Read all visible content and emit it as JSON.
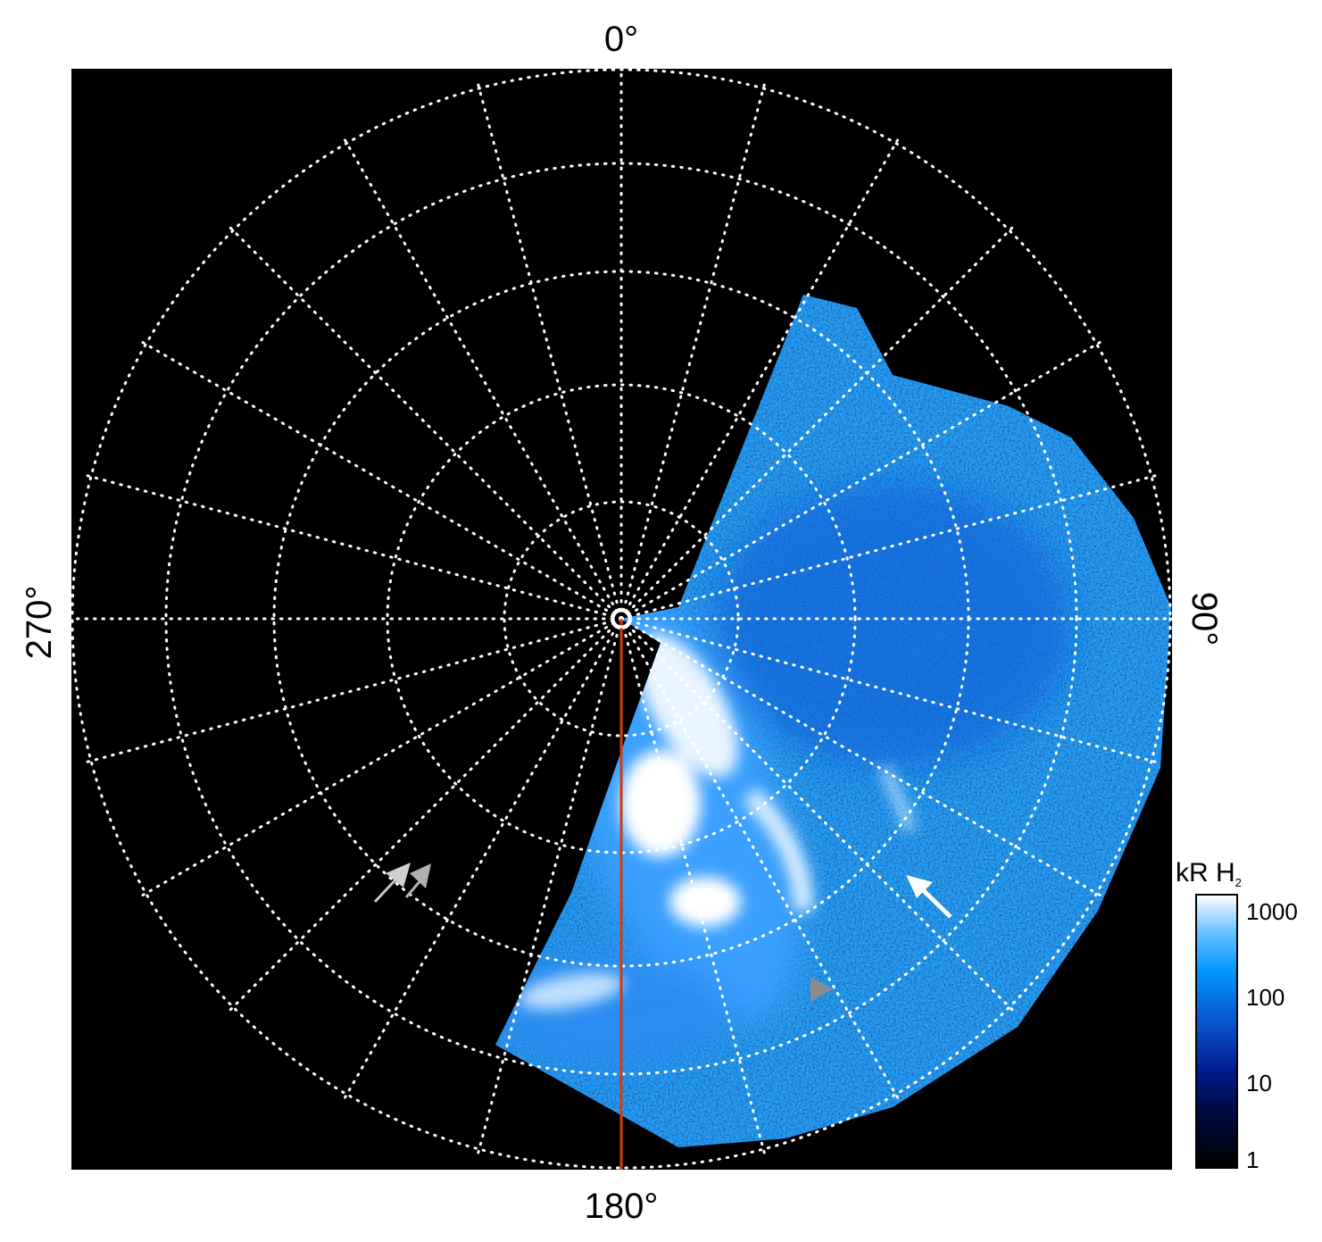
{
  "map": {
    "labels": {
      "top": "0°",
      "right": "90°",
      "bottom": "180°",
      "left": "270°"
    },
    "projection": "polar",
    "grid": {
      "meridian_step_deg": 15,
      "style": "dotted",
      "color": "#ffffff"
    },
    "reference_line": {
      "longitude": "180°",
      "color": "#d43a10"
    },
    "annotations": [
      {
        "type": "double-arrow",
        "color": "#c0c0c0"
      },
      {
        "type": "arrow",
        "color": "#ffffff"
      },
      {
        "type": "triangle-marker",
        "color": "#8c8c8c"
      }
    ]
  },
  "colorbar": {
    "title": "kR H",
    "title_subscript": "2",
    "scale": "log",
    "ticks": [
      "1000",
      "100",
      "10",
      "1"
    ],
    "colors": [
      "#000000",
      "#000a3c",
      "#001a8c",
      "#0a5ad0",
      "#0096ff",
      "#66c0ff",
      "#ffffff"
    ]
  }
}
